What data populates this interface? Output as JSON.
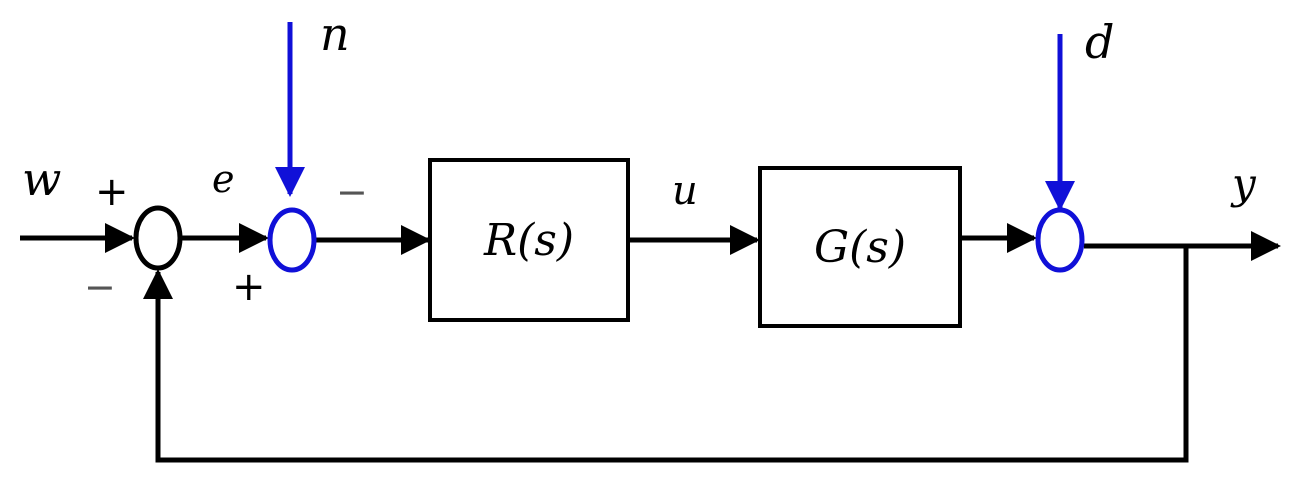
{
  "colors": {
    "signal": "#000000",
    "disturbance": "#1010d8"
  },
  "signals": {
    "reference": "w",
    "error": "e",
    "noise": "n",
    "control": "u",
    "disturbance": "d",
    "output": "y"
  },
  "blocks": {
    "controller": "R(s)",
    "plant": "G(s)"
  },
  "signs": {
    "sum1_top": "+",
    "sum1_bottom": "−",
    "sum2_top": "−",
    "sum2_bottom": "+"
  }
}
